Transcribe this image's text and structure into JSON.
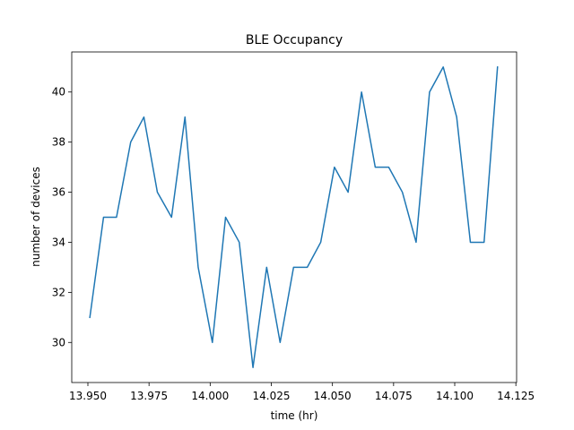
{
  "chart_data": {
    "type": "line",
    "title": "BLE Occupancy",
    "xlabel": "time (hr)",
    "ylabel": "number of devices",
    "xlim": [
      13.9434,
      14.1253
    ],
    "ylim": [
      28.4,
      41.6
    ],
    "xticks": [
      "13.950",
      "13.975",
      "14.000",
      "14.025",
      "14.050",
      "14.075",
      "14.100",
      "14.125"
    ],
    "yticks": [
      "30",
      "32",
      "34",
      "36",
      "38",
      "40"
    ],
    "grid": false,
    "line_color": "#1f77b4",
    "series": [
      {
        "x": [
          13.9508,
          13.9564,
          13.9617,
          13.9675,
          13.9729,
          13.9784,
          13.9842,
          13.9897,
          13.9951,
          14.0009,
          14.0063,
          14.0119,
          14.0175,
          14.0231,
          14.0286,
          14.0341,
          14.0397,
          14.0452,
          14.0508,
          14.0564,
          14.0619,
          14.0675,
          14.073,
          14.0786,
          14.0842,
          14.0897,
          14.0953,
          14.1008,
          14.1064,
          14.112,
          14.1175
        ],
        "y": [
          31,
          35,
          35,
          38,
          39,
          36,
          35,
          39,
          33,
          30,
          35,
          34,
          29,
          33,
          30,
          33,
          33,
          34,
          37,
          36,
          40,
          37,
          37,
          36,
          34,
          40,
          41,
          39,
          34,
          34,
          41
        ]
      }
    ]
  }
}
